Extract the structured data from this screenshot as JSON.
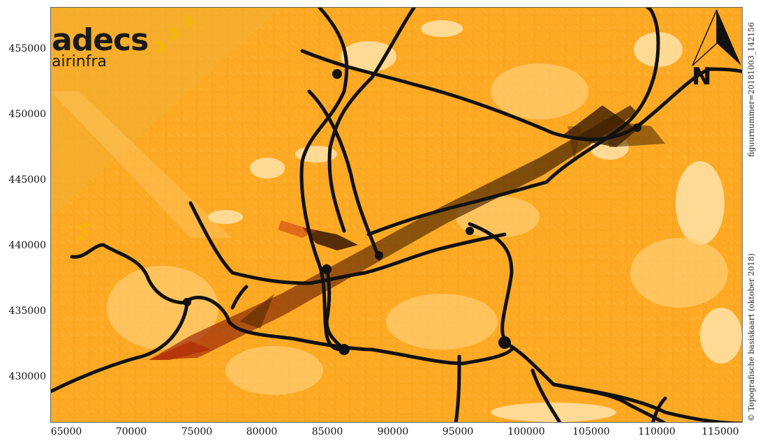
{
  "logo": {
    "brand": "adecs",
    "sub": "airinfra"
  },
  "north_arrow": {
    "label": "N",
    "icon": "north-arrow-icon"
  },
  "side_texts": {
    "figure_number": "figuurnummer=20181003_142156",
    "copyright": "© Topografische basiskaart (oktober 2018)"
  },
  "axes": {
    "x_ticks": [
      "65000",
      "70000",
      "75000",
      "80000",
      "85000",
      "90000",
      "95000",
      "100000",
      "105000",
      "110000",
      "115000"
    ],
    "y_ticks": [
      "455000",
      "450000",
      "445000",
      "440000",
      "435000",
      "430000"
    ],
    "x_range": [
      63750,
      116750
    ],
    "y_range": [
      426750,
      458500
    ]
  },
  "colors": {
    "base": "#fda923",
    "light": "#ffc25a",
    "pale": "#ffe7b8",
    "road": "#111111",
    "plume": "#5a2a00",
    "plume_red": "#c83a12",
    "brand_yellow": "#f5b800"
  }
}
